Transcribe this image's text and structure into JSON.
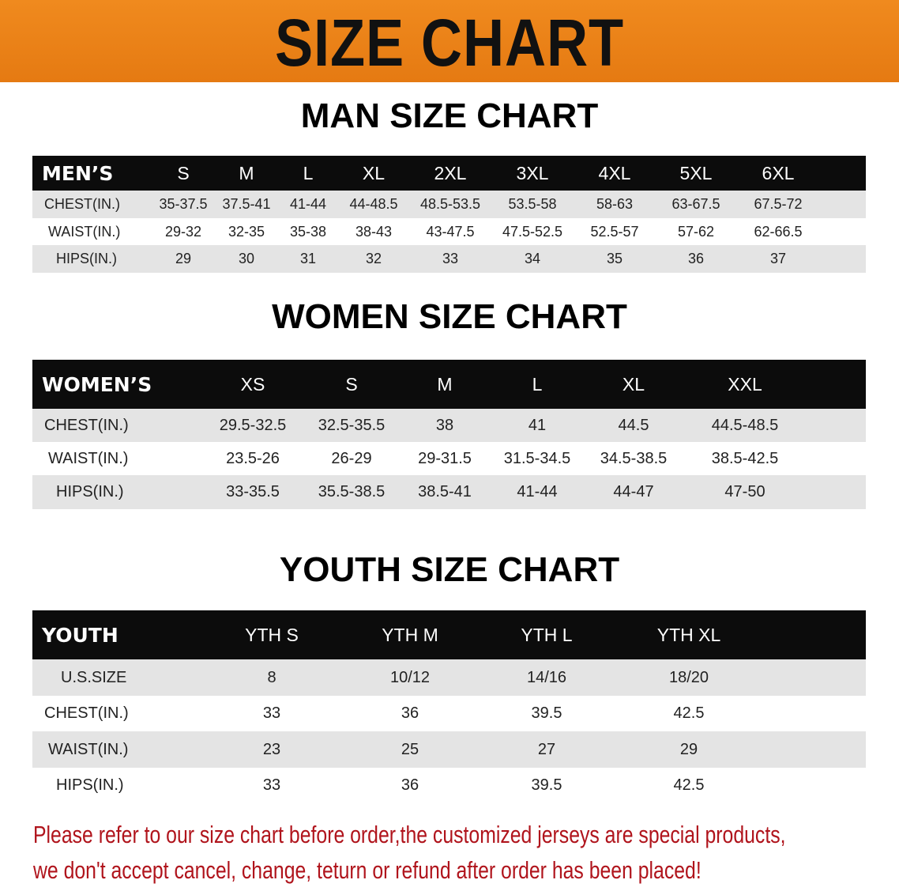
{
  "banner_title": "SIZE CHART",
  "men": {
    "title": "MAN SIZE CHART",
    "header": [
      "MEN’S",
      "S",
      "M",
      "L",
      "XL",
      "2XL",
      "3XL",
      "4XL",
      "5XL",
      "6XL"
    ],
    "rows": [
      [
        "CHEST(IN.)",
        "35-37.5",
        "37.5-41",
        "41-44",
        "44-48.5",
        "48.5-53.5",
        "53.5-58",
        "58-63",
        "63-67.5",
        "67.5-72"
      ],
      [
        "WAIST(IN.)",
        "29-32",
        "32-35",
        "35-38",
        "38-43",
        "43-47.5",
        "47.5-52.5",
        "52.5-57",
        "57-62",
        "62-66.5"
      ],
      [
        "HIPS(IN.)",
        "29",
        "30",
        "31",
        "32",
        "33",
        "34",
        "35",
        "36",
        "37"
      ]
    ]
  },
  "women": {
    "title": "WOMEN SIZE CHART",
    "header": [
      "WOMEN’S",
      "XS",
      "S",
      "M",
      "L",
      "XL",
      "XXL"
    ],
    "rows": [
      [
        "CHEST(IN.)",
        "29.5-32.5",
        "32.5-35.5",
        "38",
        "41",
        "44.5",
        "44.5-48.5"
      ],
      [
        "WAIST(IN.)",
        "23.5-26",
        "26-29",
        "29-31.5",
        "31.5-34.5",
        "34.5-38.5",
        "38.5-42.5"
      ],
      [
        "HIPS(IN.)",
        "33-35.5",
        "35.5-38.5",
        "38.5-41",
        "41-44",
        "44-47",
        "47-50"
      ]
    ]
  },
  "youth": {
    "title": "YOUTH SIZE CHART",
    "header": [
      "YOUTH",
      "YTH S",
      "YTH M",
      "YTH L",
      "YTH XL"
    ],
    "rows": [
      [
        "U.S.SIZE",
        "8",
        "10/12",
        "14/16",
        "18/20"
      ],
      [
        "CHEST(IN.)",
        "33",
        "36",
        "39.5",
        "42.5"
      ],
      [
        "WAIST(IN.)",
        "23",
        "25",
        "27",
        "29"
      ],
      [
        "HIPS(IN.)",
        "33",
        "36",
        "39.5",
        "42.5"
      ]
    ]
  },
  "notice": [
    "Please refer to our size chart before order,the customized jerseys are special products,",
    "we don't accept cancel, change, teturn or refund after order has been placed!"
  ],
  "colors": {
    "banner": "#e57a12",
    "header_row": "#0c0c0c",
    "stripe": "#e4e4e4",
    "notice": "#b0141c"
  }
}
